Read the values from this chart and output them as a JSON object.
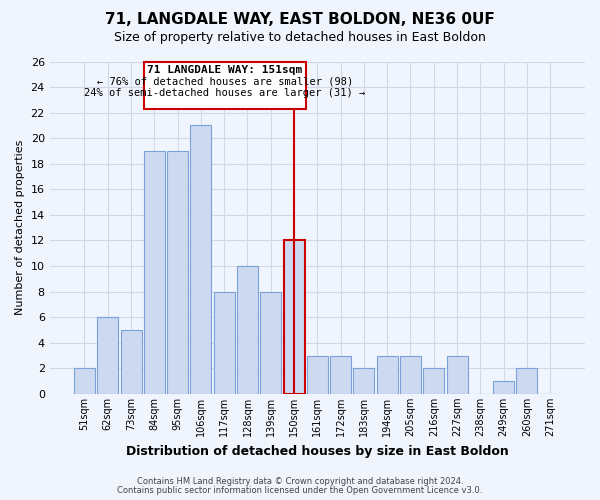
{
  "title": "71, LANGDALE WAY, EAST BOLDON, NE36 0UF",
  "subtitle": "Size of property relative to detached houses in East Boldon",
  "xlabel": "Distribution of detached houses by size in East Boldon",
  "ylabel": "Number of detached properties",
  "bar_labels": [
    "51sqm",
    "62sqm",
    "73sqm",
    "84sqm",
    "95sqm",
    "106sqm",
    "117sqm",
    "128sqm",
    "139sqm",
    "150sqm",
    "161sqm",
    "172sqm",
    "183sqm",
    "194sqm",
    "205sqm",
    "216sqm",
    "227sqm",
    "238sqm",
    "249sqm",
    "260sqm",
    "271sqm"
  ],
  "bar_values": [
    2,
    6,
    5,
    19,
    19,
    21,
    8,
    10,
    8,
    12,
    3,
    3,
    2,
    3,
    3,
    2,
    3,
    0,
    1,
    2,
    0
  ],
  "bar_color": "#ccd9f0",
  "bar_edge_color": "#7ba3d9",
  "highlight_index": 9,
  "highlight_edge_color": "#cc0000",
  "vline_color": "#cc0000",
  "ylim": [
    0,
    26
  ],
  "yticks": [
    0,
    2,
    4,
    6,
    8,
    10,
    12,
    14,
    16,
    18,
    20,
    22,
    24,
    26
  ],
  "annotation_title": "71 LANGDALE WAY: 151sqm",
  "annotation_line1": "← 76% of detached houses are smaller (98)",
  "annotation_line2": "24% of semi-detached houses are larger (31) →",
  "annotation_box_color": "#ffffff",
  "annotation_box_edge": "#cc0000",
  "footer_line1": "Contains HM Land Registry data © Crown copyright and database right 2024.",
  "footer_line2": "Contains public sector information licensed under the Open Government Licence v3.0.",
  "grid_color": "#d0d8e8",
  "background_color": "#f0f4fc"
}
